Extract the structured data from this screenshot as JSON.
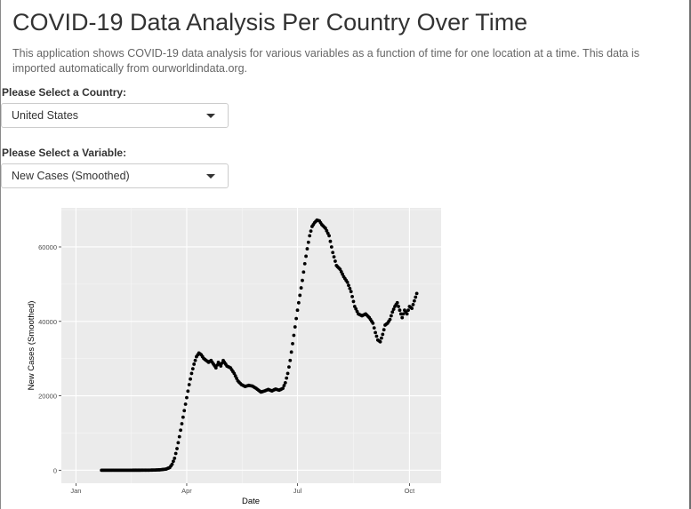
{
  "page": {
    "title": "COVID-19 Data Analysis Per Country Over Time",
    "description": "This application shows COVID-19 data analysis for various variables as a function of time for one location at a time. This data is imported automatically from ourworldindata.org."
  },
  "country_select": {
    "label": "Please Select a Country:",
    "value": "United States"
  },
  "variable_select": {
    "label": "Please Select a Variable:",
    "value": "New Cases (Smoothed)"
  },
  "chart_data": {
    "type": "scatter",
    "xlabel": "Date",
    "ylabel": "New Cases (Smoothed)",
    "x_tick_labels": [
      "Jan",
      "Apr",
      "Jul",
      "Oct"
    ],
    "x_tick_dates": [
      "2020-01-01",
      "2020-04-01",
      "2020-07-01",
      "2020-10-01"
    ],
    "y_ticks": [
      0,
      20000,
      40000,
      60000
    ],
    "xlim": [
      "2019-12-20",
      "2020-10-27"
    ],
    "ylim": [
      -3500,
      70500
    ],
    "grid": true,
    "background": "#ebebeb",
    "point_color": "#000000",
    "series": [
      {
        "x": [
          "2020-01-22",
          "2020-02-01",
          "2020-02-15",
          "2020-03-01",
          "2020-03-10",
          "2020-03-15",
          "2020-03-18",
          "2020-03-20",
          "2020-03-22",
          "2020-03-24",
          "2020-03-26",
          "2020-03-28",
          "2020-03-30",
          "2020-04-01",
          "2020-04-03",
          "2020-04-05",
          "2020-04-07",
          "2020-04-09",
          "2020-04-11",
          "2020-04-13",
          "2020-04-15",
          "2020-04-17",
          "2020-04-19",
          "2020-04-21",
          "2020-04-23",
          "2020-04-25",
          "2020-04-27",
          "2020-04-29",
          "2020-05-01",
          "2020-05-04",
          "2020-05-07",
          "2020-05-10",
          "2020-05-13",
          "2020-05-16",
          "2020-05-19",
          "2020-05-22",
          "2020-05-25",
          "2020-05-28",
          "2020-06-01",
          "2020-06-04",
          "2020-06-07",
          "2020-06-10",
          "2020-06-13",
          "2020-06-16",
          "2020-06-19",
          "2020-06-21",
          "2020-06-23",
          "2020-06-25",
          "2020-06-27",
          "2020-06-29",
          "2020-07-01",
          "2020-07-03",
          "2020-07-05",
          "2020-07-07",
          "2020-07-09",
          "2020-07-11",
          "2020-07-13",
          "2020-07-15",
          "2020-07-17",
          "2020-07-19",
          "2020-07-21",
          "2020-07-24",
          "2020-07-27",
          "2020-07-30",
          "2020-08-02",
          "2020-08-05",
          "2020-08-08",
          "2020-08-11",
          "2020-08-14",
          "2020-08-17",
          "2020-08-20",
          "2020-08-23",
          "2020-08-26",
          "2020-08-29",
          "2020-09-01",
          "2020-09-03",
          "2020-09-05",
          "2020-09-07",
          "2020-09-09",
          "2020-09-11",
          "2020-09-13",
          "2020-09-15",
          "2020-09-17",
          "2020-09-19",
          "2020-09-21",
          "2020-09-23",
          "2020-09-25",
          "2020-09-27",
          "2020-09-29",
          "2020-10-01",
          "2020-10-03",
          "2020-10-05",
          "2020-10-07"
        ],
        "y": [
          0,
          0,
          0,
          10,
          100,
          300,
          700,
          1600,
          3200,
          5800,
          9000,
          12500,
          16000,
          19500,
          23000,
          26000,
          28500,
          30500,
          31500,
          31000,
          30000,
          29500,
          29000,
          29500,
          28500,
          27500,
          29000,
          28000,
          29500,
          28000,
          27500,
          26000,
          24000,
          23000,
          22500,
          22800,
          22600,
          22000,
          21000,
          21300,
          21700,
          21300,
          21800,
          21500,
          22000,
          23500,
          26000,
          29500,
          34000,
          38500,
          43000,
          47000,
          51000,
          55500,
          59500,
          63000,
          65500,
          66500,
          67200,
          67000,
          66000,
          65000,
          63000,
          58500,
          55000,
          54000,
          52000,
          50500,
          48000,
          44000,
          42000,
          41500,
          42000,
          41000,
          39500,
          37000,
          35000,
          34500,
          36500,
          39000,
          39500,
          40500,
          42500,
          44000,
          45000,
          43000,
          41000,
          43000,
          42000,
          44000,
          43500,
          45500,
          47500
        ]
      }
    ]
  }
}
